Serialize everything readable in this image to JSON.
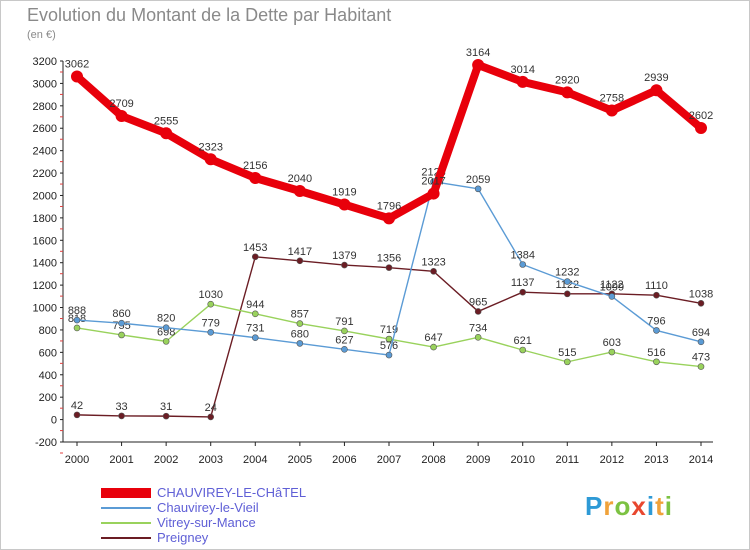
{
  "chart_data": {
    "type": "line",
    "title": "Evolution du Montant de la Dette par Habitant",
    "subtitle": "(en €)",
    "x": [
      "2000",
      "2001",
      "2002",
      "2003",
      "2004",
      "2005",
      "2006",
      "2007",
      "2008",
      "2009",
      "2010",
      "2011",
      "2012",
      "2013",
      "2014"
    ],
    "ylim": [
      -200,
      3200
    ],
    "yticks": [
      "-200",
      "0",
      "200",
      "400",
      "600",
      "800",
      "1000",
      "1200",
      "1400",
      "1600",
      "1800",
      "2000",
      "2200",
      "2400",
      "2600",
      "2800",
      "3000",
      "3200"
    ],
    "grid": false,
    "legend_position": "bottom-left",
    "series": [
      {
        "name": "CHAUVIREY-LE-CHâTEL",
        "color": "#e8000b",
        "values": [
          3062,
          2709,
          2555,
          2323,
          2156,
          2040,
          1919,
          1796,
          2017,
          3164,
          3014,
          2920,
          2758,
          2939,
          2602
        ]
      },
      {
        "name": "Chauvirey-le-Vieil",
        "color": "#5b9bd5",
        "values": [
          888,
          860,
          820,
          779,
          731,
          680,
          627,
          576,
          2123,
          2059,
          1384,
          1232,
          1099,
          796,
          694
        ]
      },
      {
        "name": "Vitrey-sur-Mance",
        "color": "#99d25c",
        "values": [
          818,
          755,
          698,
          1030,
          944,
          857,
          791,
          719,
          647,
          734,
          621,
          515,
          603,
          516,
          473
        ]
      },
      {
        "name": "Preigney",
        "color": "#6b1d24",
        "values": [
          42,
          33,
          31,
          24,
          1453,
          1417,
          1379,
          1356,
          1323,
          965,
          1137,
          1122,
          1122,
          1110,
          1038
        ]
      }
    ]
  },
  "brand": {
    "text": "Proxiti",
    "letters": [
      {
        "ch": "P",
        "color": "#2e9ad6"
      },
      {
        "ch": "r",
        "color": "#f0a23a"
      },
      {
        "ch": "o",
        "color": "#7cc242"
      },
      {
        "ch": "x",
        "color": "#e8472f"
      },
      {
        "ch": "i",
        "color": "#2e9ad6"
      },
      {
        "ch": "t",
        "color": "#f0a23a"
      },
      {
        "ch": "i",
        "color": "#7cc242"
      }
    ]
  }
}
